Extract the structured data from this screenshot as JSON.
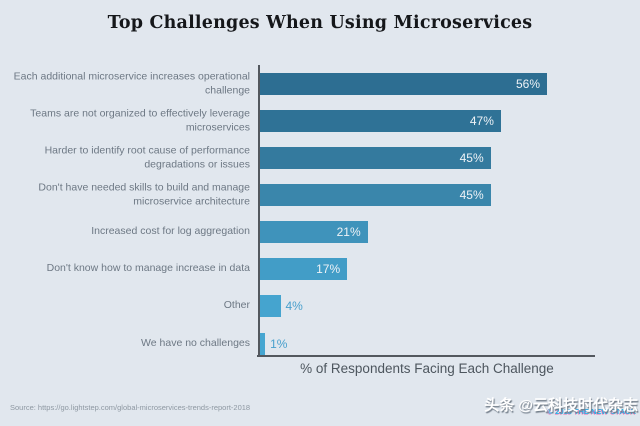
{
  "page": {
    "background": "#e1e7ee",
    "source_note": "Source: https://go.lightstep.com/global-microservices-trends-report-2018",
    "watermark": "头条 @云科技时代杂志",
    "copyright": "© 2018 THE NEW STACK"
  },
  "chart_data": {
    "type": "bar",
    "orientation": "horizontal",
    "title": "Top Challenges When Using Microservices",
    "xlabel": "% of Respondents Facing Each Challenge",
    "ylabel": "",
    "xlim": [
      0,
      65
    ],
    "grid": false,
    "legend": false,
    "categories": [
      "Each additional microservice increases operational challenge",
      "Teams are not organized to effectively leverage microservices",
      "Harder to identify root cause of performance degradations or issues",
      "Don't have needed skills to build and manage microservice architecture",
      "Increased cost for log aggregation",
      "Don't know how to manage increase in data",
      "Other",
      "We have no challenges"
    ],
    "values": [
      56,
      47,
      45,
      45,
      21,
      17,
      4,
      1
    ],
    "value_labels": [
      "56%",
      "47%",
      "45%",
      "45%",
      "21%",
      "17%",
      "4%",
      "1%"
    ],
    "bar_colors": [
      "#2d6e92",
      "#2f7296",
      "#347a9e",
      "#3a86ab",
      "#3f93bb",
      "#429dc7",
      "#45a4cf",
      "#46a6d1"
    ],
    "inside_value_color": "#eef2f6",
    "outside_value_color": "#49a0cd",
    "axis_color": "#53585e"
  }
}
